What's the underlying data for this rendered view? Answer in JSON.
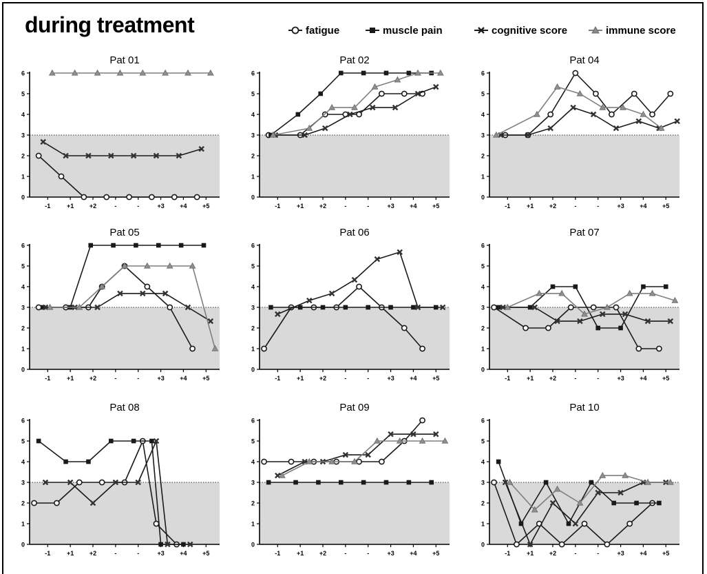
{
  "header": {
    "title": "during treatment"
  },
  "legend": {
    "fatigue": "fatigue",
    "muscle_pain": "muscle pain",
    "cognitive": "cognitive score",
    "immune": "immune score"
  },
  "colors": {
    "line": "#1a1a1a",
    "immune": "#7f7f7f",
    "shade": "#d9d9d9"
  },
  "chart_data": [
    {
      "type": "line",
      "title": "Pat 01",
      "categories": [
        "-1",
        "+1",
        "+2",
        "-",
        "-",
        "+3",
        "+4",
        "+5"
      ],
      "ylim": [
        0,
        6
      ],
      "yticks": [
        0,
        1,
        2,
        3,
        4,
        5,
        6
      ],
      "threshold": 3,
      "series": [
        {
          "name": "fatigue",
          "x": [
            -1.2,
            -0.2,
            0.8,
            1.8,
            2.8,
            3.8,
            4.8,
            5.8
          ],
          "y": [
            2,
            1,
            0,
            0,
            0,
            0,
            0,
            0
          ]
        },
        {
          "name": "cognitive score",
          "x": [
            -1.0,
            0.0,
            1.0,
            2.0,
            3.0,
            4.0,
            5.0,
            6.0
          ],
          "y": [
            2.67,
            2,
            2,
            2,
            2,
            2,
            2,
            2.33
          ]
        },
        {
          "name": "immune score",
          "x": [
            -0.6,
            0.4,
            1.4,
            2.4,
            3.4,
            4.4,
            5.4,
            6.4
          ],
          "y": [
            6,
            6,
            6,
            6,
            6,
            6,
            6,
            6
          ]
        }
      ]
    },
    {
      "type": "line",
      "title": "Pat 02",
      "categories": [
        "-1",
        "+1",
        "+2",
        "-",
        "-",
        "+3",
        "+4",
        "+5"
      ],
      "ylim": [
        0,
        6
      ],
      "yticks": [
        0,
        1,
        2,
        3,
        4,
        5,
        6
      ],
      "threshold": 3,
      "series": [
        {
          "name": "fatigue",
          "x": [
            -1.2,
            0.2,
            1.3,
            2.2,
            2.8,
            3.8,
            4.8,
            5.6
          ],
          "y": [
            3,
            3,
            4,
            4,
            4,
            5,
            5,
            5
          ]
        },
        {
          "name": "muscle pain",
          "x": [
            -1.1,
            0.1,
            1.1,
            2.0,
            3.0,
            4.0,
            5.0,
            6.0
          ],
          "y": [
            3,
            4,
            5,
            6,
            6,
            6,
            6,
            6
          ]
        },
        {
          "name": "cognitive score",
          "x": [
            -0.9,
            0.4,
            1.3,
            2.4,
            3.4,
            4.4,
            5.4,
            6.2
          ],
          "y": [
            3,
            3,
            3.33,
            4,
            4.33,
            4.33,
            5,
            5.33
          ]
        },
        {
          "name": "immune score",
          "x": [
            -1.0,
            0.6,
            1.6,
            2.6,
            3.5,
            4.5,
            5.4,
            6.4
          ],
          "y": [
            3,
            3.33,
            4.33,
            4.33,
            5.33,
            5.67,
            6,
            6
          ]
        }
      ]
    },
    {
      "type": "line",
      "title": "Pat 04",
      "categories": [
        "-1",
        "+1",
        "+2",
        "-",
        "-",
        "+3",
        "+4",
        "+5"
      ],
      "ylim": [
        0,
        6
      ],
      "yticks": [
        0,
        1,
        2,
        3,
        4,
        5,
        6
      ],
      "threshold": 3,
      "series": [
        {
          "name": "fatigue",
          "x": [
            -0.9,
            0.1,
            1.1,
            2.2,
            3.1,
            3.8,
            4.8,
            5.6,
            6.4
          ],
          "y": [
            3,
            3,
            4,
            6,
            5,
            4,
            5,
            4,
            5
          ]
        },
        {
          "name": "cognitive score",
          "x": [
            -1.1,
            0.1,
            1.1,
            2.1,
            3.0,
            4.0,
            5.0,
            5.9,
            6.7
          ],
          "y": [
            3,
            3,
            3.33,
            4.33,
            4,
            3.33,
            3.67,
            3.33,
            3.67
          ]
        },
        {
          "name": "immune score",
          "x": [
            -1.3,
            0.5,
            1.4,
            2.4,
            3.4,
            4.3,
            5.2,
            6.0
          ],
          "y": [
            3,
            4,
            5.33,
            5,
            4.33,
            4.33,
            4,
            3.33
          ]
        }
      ]
    },
    {
      "type": "line",
      "title": "Pat 05",
      "categories": [
        "-1",
        "+1",
        "+2",
        "-",
        "-",
        "+3",
        "+4",
        "+5"
      ],
      "ylim": [
        0,
        6
      ],
      "yticks": [
        0,
        1,
        2,
        3,
        4,
        5,
        6
      ],
      "threshold": 3,
      "series": [
        {
          "name": "fatigue",
          "x": [
            -1.2,
            0.0,
            1.0,
            1.6,
            2.6,
            3.6,
            4.6,
            5.6
          ],
          "y": [
            3,
            3,
            3,
            4,
            5,
            4,
            3,
            1
          ]
        },
        {
          "name": "muscle pain",
          "x": [
            -1.0,
            0.2,
            1.1,
            2.1,
            3.1,
            4.1,
            5.1,
            6.1
          ],
          "y": [
            3,
            3,
            6,
            6,
            6,
            6,
            6,
            6
          ]
        },
        {
          "name": "cognitive score",
          "x": [
            -0.9,
            0.4,
            1.4,
            2.4,
            3.4,
            4.4,
            5.4,
            6.4
          ],
          "y": [
            3,
            3,
            3,
            3.67,
            3.67,
            3.67,
            3,
            2.33
          ]
        },
        {
          "name": "immune score",
          "x": [
            -0.7,
            0.6,
            1.6,
            2.6,
            3.6,
            4.6,
            5.6,
            6.6
          ],
          "y": [
            3,
            3,
            4,
            5,
            5,
            5,
            5,
            1
          ]
        }
      ]
    },
    {
      "type": "line",
      "title": "Pat 06",
      "categories": [
        "-1",
        "+1",
        "+2",
        "-",
        "-",
        "+3",
        "+4",
        "+5"
      ],
      "ylim": [
        0,
        6
      ],
      "yticks": [
        0,
        1,
        2,
        3,
        4,
        5,
        6
      ],
      "threshold": 3,
      "series": [
        {
          "name": "fatigue",
          "x": [
            -1.4,
            -0.2,
            0.8,
            1.8,
            2.8,
            3.8,
            4.8,
            5.6
          ],
          "y": [
            1,
            3,
            3,
            3,
            4,
            3,
            2,
            1
          ]
        },
        {
          "name": "muscle pain",
          "x": [
            -1.1,
            0.2,
            1.2,
            2.2,
            3.2,
            4.2,
            5.2,
            6.2
          ],
          "y": [
            3,
            3,
            3,
            3,
            3,
            3,
            3,
            3
          ]
        },
        {
          "name": "cognitive score",
          "x": [
            -0.8,
            0.6,
            1.6,
            2.6,
            3.6,
            4.6,
            5.4,
            6.5
          ],
          "y": [
            2.67,
            3.33,
            3.67,
            4.33,
            5.33,
            5.67,
            3,
            3
          ]
        }
      ]
    },
    {
      "type": "line",
      "title": "Pat 07",
      "categories": [
        "-1",
        "+1",
        "+2",
        "-",
        "-",
        "+3",
        "+4",
        "+5"
      ],
      "ylim": [
        0,
        6
      ],
      "yticks": [
        0,
        1,
        2,
        3,
        4,
        5,
        6
      ],
      "threshold": 3,
      "series": [
        {
          "name": "fatigue",
          "x": [
            -1.4,
            0.0,
            1.0,
            2.0,
            3.0,
            4.0,
            5.0,
            5.9
          ],
          "y": [
            3,
            2,
            2,
            3,
            3,
            3,
            1,
            1
          ]
        },
        {
          "name": "muscle pain",
          "x": [
            -1.2,
            0.2,
            1.2,
            2.2,
            3.2,
            4.2,
            5.2,
            6.2
          ],
          "y": [
            3,
            3,
            4,
            4,
            2,
            2,
            4,
            4
          ]
        },
        {
          "name": "cognitive score",
          "x": [
            -1.0,
            0.4,
            1.4,
            2.4,
            3.4,
            4.4,
            5.4,
            6.4
          ],
          "y": [
            3,
            3,
            2.33,
            2.33,
            2.67,
            2.67,
            2.33,
            2.33
          ]
        },
        {
          "name": "immune score",
          "x": [
            -0.8,
            0.6,
            1.6,
            2.6,
            3.6,
            4.6,
            5.6,
            6.6
          ],
          "y": [
            3,
            3.67,
            3.67,
            2.67,
            3,
            3.67,
            3.67,
            3.33
          ]
        }
      ]
    },
    {
      "type": "line",
      "title": "Pat 08",
      "categories": [
        "-1",
        "+1",
        "+2",
        "-",
        "-",
        "+3",
        "+4",
        "+5"
      ],
      "ylim": [
        0,
        6
      ],
      "yticks": [
        0,
        1,
        2,
        3,
        4,
        5,
        6
      ],
      "threshold": 3,
      "series": [
        {
          "name": "fatigue",
          "x": [
            -1.4,
            -0.4,
            0.6,
            1.6,
            2.6,
            3.4,
            4.0,
            4.9
          ],
          "y": [
            2,
            2,
            3,
            3,
            3,
            5,
            1,
            0
          ]
        },
        {
          "name": "muscle pain",
          "x": [
            -1.2,
            0.0,
            1.0,
            2.0,
            3.0,
            3.8,
            4.2,
            5.2
          ],
          "y": [
            5,
            4,
            4,
            5,
            5,
            5,
            0,
            0
          ]
        },
        {
          "name": "cognitive score",
          "x": [
            -0.9,
            0.2,
            1.2,
            2.2,
            3.2,
            4.0,
            4.5,
            5.5
          ],
          "y": [
            3,
            3,
            2,
            3,
            3,
            5,
            0,
            0
          ]
        }
      ]
    },
    {
      "type": "line",
      "title": "Pat 09",
      "categories": [
        "-1",
        "+1",
        "+2",
        "-",
        "-",
        "+3",
        "+4",
        "+5"
      ],
      "ylim": [
        0,
        6
      ],
      "yticks": [
        0,
        1,
        2,
        3,
        4,
        5,
        6
      ],
      "threshold": 3,
      "series": [
        {
          "name": "fatigue",
          "x": [
            -1.4,
            -0.2,
            0.8,
            1.8,
            2.8,
            3.8,
            4.8,
            5.6
          ],
          "y": [
            4,
            4,
            4,
            4,
            4,
            4,
            5,
            6
          ]
        },
        {
          "name": "muscle pain",
          "x": [
            -1.2,
            0.0,
            1.0,
            2.0,
            3.0,
            4.0,
            5.0,
            6.0
          ],
          "y": [
            3,
            3,
            3,
            3,
            3,
            3,
            3,
            3
          ]
        },
        {
          "name": "cognitive score",
          "x": [
            -0.8,
            0.4,
            1.2,
            2.2,
            3.2,
            4.2,
            5.2,
            6.2
          ],
          "y": [
            3.33,
            4,
            4,
            4.33,
            4.33,
            5.33,
            5.33,
            5.33
          ]
        },
        {
          "name": "immune score",
          "x": [
            -0.6,
            0.6,
            1.6,
            2.6,
            3.6,
            4.6,
            5.6,
            6.6
          ],
          "y": [
            3.33,
            4,
            4,
            4,
            5,
            5,
            5,
            5
          ]
        }
      ]
    },
    {
      "type": "line",
      "title": "Pat 10",
      "categories": [
        "-1",
        "+1",
        "+2",
        "-",
        "-",
        "+3",
        "+4",
        "+5"
      ],
      "ylim": [
        0,
        6
      ],
      "yticks": [
        0,
        1,
        2,
        3,
        4,
        5,
        6
      ],
      "threshold": 3,
      "series": [
        {
          "name": "fatigue",
          "x": [
            -1.4,
            -0.4,
            0.6,
            1.6,
            2.6,
            3.6,
            4.6,
            5.6
          ],
          "y": [
            3,
            0,
            1,
            0,
            1,
            0,
            1,
            2
          ]
        },
        {
          "name": "muscle pain",
          "x": [
            -1.2,
            -0.2,
            0.9,
            1.9,
            2.9,
            3.9,
            4.9,
            5.9
          ],
          "y": [
            4,
            1,
            3,
            1,
            3,
            2,
            2,
            2
          ]
        },
        {
          "name": "cognitive score",
          "x": [
            -0.9,
            0.2,
            1.2,
            2.2,
            3.2,
            4.2,
            5.2,
            6.2
          ],
          "y": [
            3,
            0,
            2,
            1,
            2.5,
            2.5,
            3,
            3
          ]
        },
        {
          "name": "immune score",
          "x": [
            -0.7,
            0.4,
            1.4,
            2.4,
            3.4,
            4.4,
            5.4,
            6.4
          ],
          "y": [
            3,
            1.67,
            2.67,
            2,
            3.33,
            3.33,
            3,
            3
          ]
        }
      ]
    }
  ]
}
